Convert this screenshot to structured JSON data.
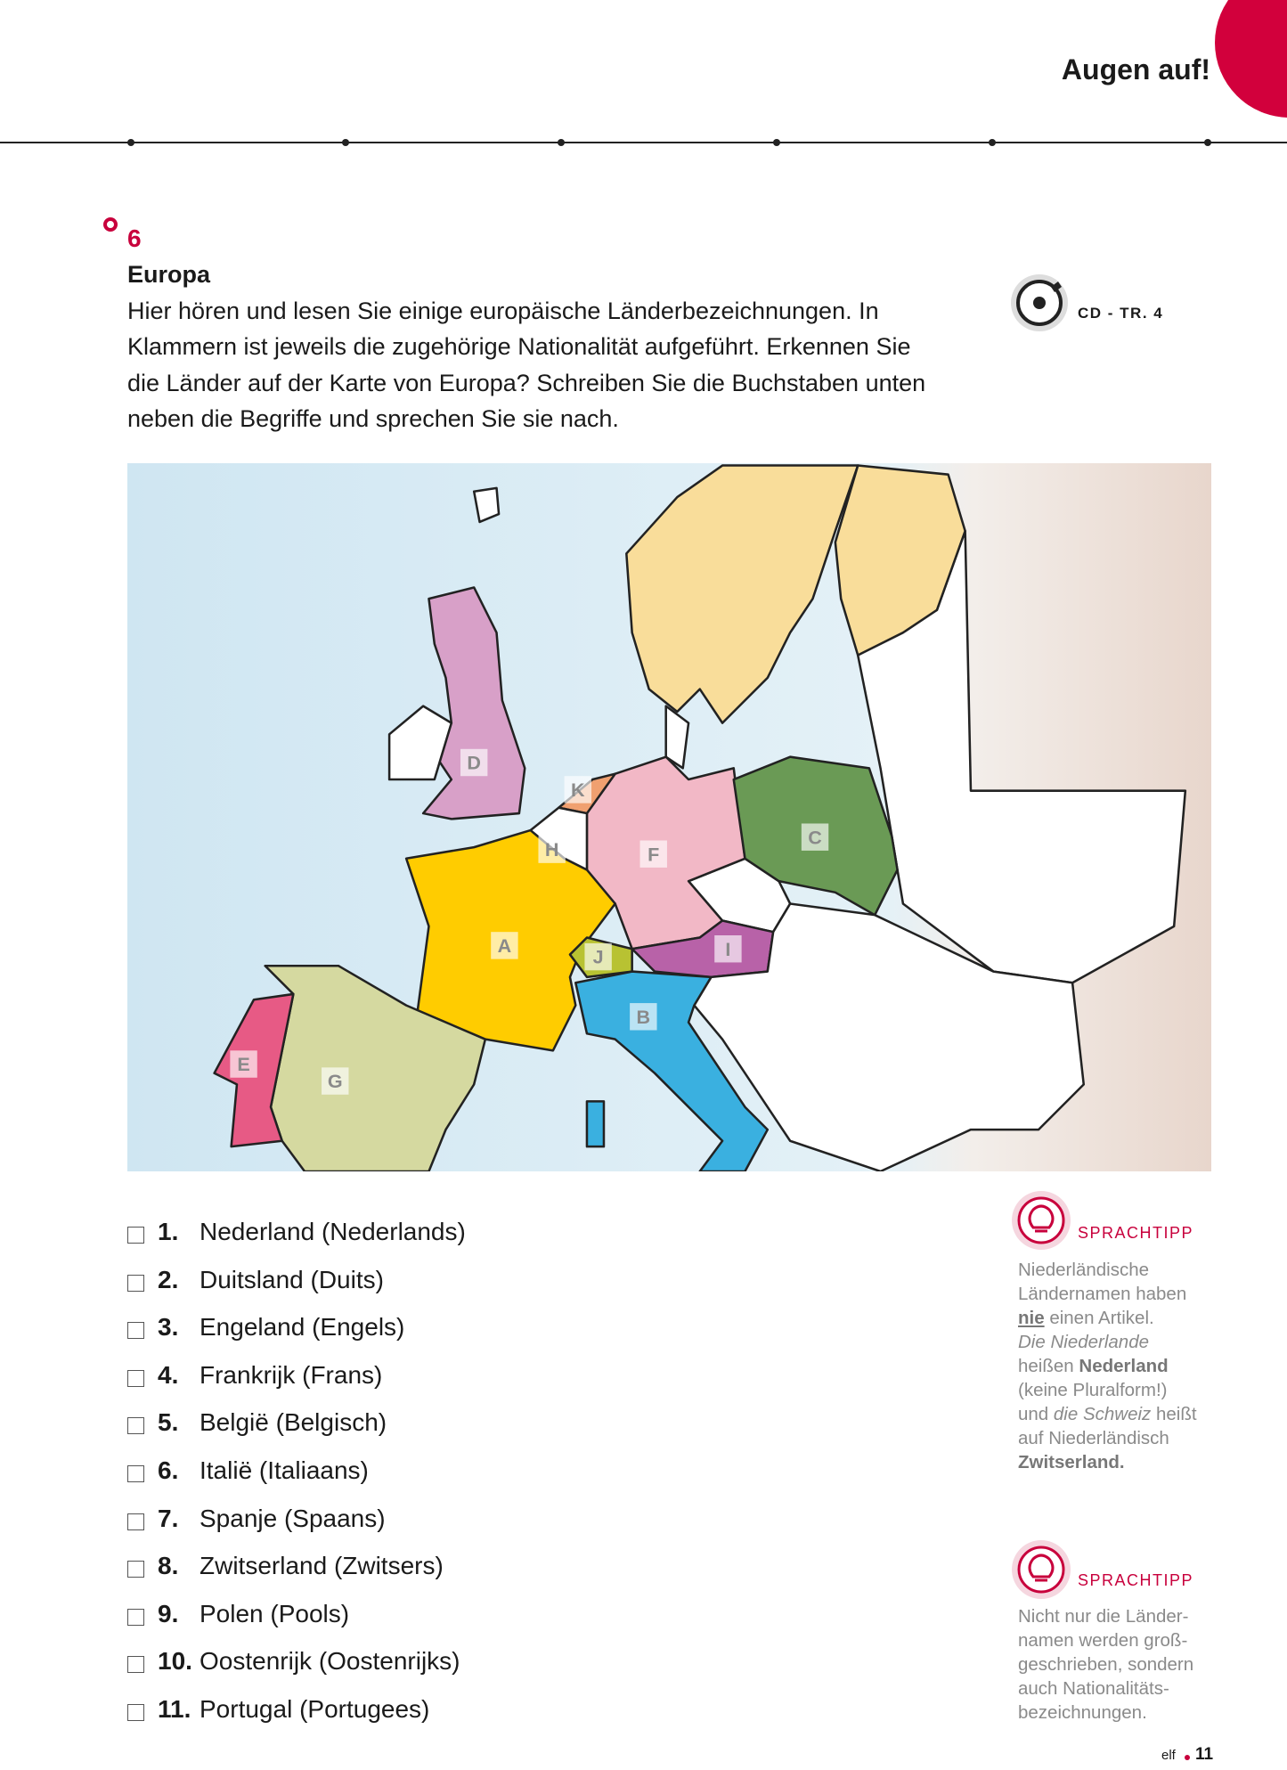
{
  "header": {
    "title": "Augen auf!"
  },
  "exercise": {
    "number": "6",
    "title": "Europa",
    "instructions": [
      "Hier hören und lesen Sie einige europäische Länderbezeichnungen. In",
      "Klammern ist jeweils die zugehörige Nationalität aufgeführt. Erkennen Sie",
      "die Länder auf der Karte von Europa? Schreiben Sie die Buchstaben unten",
      "neben die Begriffe und sprechen Sie sie nach."
    ],
    "audio": "CD - TR. 4"
  },
  "map": {
    "labels": [
      "A",
      "B",
      "C",
      "D",
      "E",
      "F",
      "G",
      "H",
      "I",
      "J",
      "K"
    ]
  },
  "items": [
    {
      "number": "1.",
      "text": "Nederland (Nederlands)"
    },
    {
      "number": "2.",
      "text": "Duitsland (Duits)"
    },
    {
      "number": "3.",
      "text": "Engeland (Engels)"
    },
    {
      "number": "4.",
      "text": "Frankrijk (Frans)"
    },
    {
      "number": "5.",
      "text": "België (Belgisch)"
    },
    {
      "number": "6.",
      "text": "Italië (Italiaans)"
    },
    {
      "number": "7.",
      "text": "Spanje (Spaans)"
    },
    {
      "number": "8.",
      "text": "Zwitserland (Zwitsers)"
    },
    {
      "number": "9.",
      "text": "Polen (Pools)"
    },
    {
      "number": "10.",
      "text": "Oostenrijk (Oostenrijks)"
    },
    {
      "number": "11.",
      "text": "Portugal (Portugees)"
    }
  ],
  "tips": [
    {
      "label": "SPRACHTIPP",
      "lines": [
        [
          "Niederländische"
        ],
        [
          "Ländernamen haben"
        ],
        [
          "nie",
          " einen Artikel."
        ],
        [
          "Die Niederlande"
        ],
        [
          "heißen ",
          "Nederland"
        ],
        [
          "(keine Pluralform!)"
        ],
        [
          "und ",
          "die Schweiz",
          " heißt"
        ],
        [
          "auf Niederländisch"
        ],
        [
          "Zwitserland."
        ]
      ]
    },
    {
      "label": "SPRACHTIPP",
      "lines": [
        [
          "Nicht nur die Länder-"
        ],
        [
          "namen werden groß-"
        ],
        [
          "geschrieben, sondern"
        ],
        [
          "auch Nationalitäts-"
        ],
        [
          "bezeichnungen."
        ]
      ]
    }
  ],
  "footer": {
    "book": "elf",
    "page": "11"
  }
}
